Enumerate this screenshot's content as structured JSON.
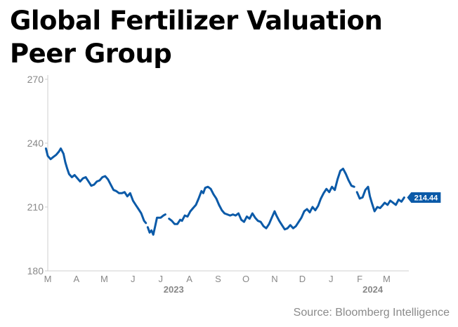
{
  "title_lines": [
    "Global Fertilizer Valuation",
    "Peer Group"
  ],
  "source": "Source: Bloomberg Intelligence",
  "colors": {
    "line": "#0b5aa8",
    "axis": "#cfcfcf",
    "tick_text": "#888888",
    "title": "#000000"
  },
  "chart_data": {
    "type": "line",
    "title": "Global Fertilizer Valuation Peer Group",
    "xlabel": "",
    "ylabel": "",
    "ylim": [
      180,
      270
    ],
    "yticks": [
      180,
      210,
      240,
      270
    ],
    "xlim": [
      "2023-03-01",
      "2024-03-25"
    ],
    "x_tick_labels": [
      {
        "label": "M",
        "date": "2023-03-01"
      },
      {
        "label": "A",
        "date": "2023-04-01"
      },
      {
        "label": "M",
        "date": "2023-05-01"
      },
      {
        "label": "J",
        "date": "2023-06-01"
      },
      {
        "label": "J",
        "date": "2023-07-01"
      },
      {
        "label": "A",
        "date": "2023-08-01"
      },
      {
        "label": "S",
        "date": "2023-09-01"
      },
      {
        "label": "O",
        "date": "2023-10-01"
      },
      {
        "label": "N",
        "date": "2023-11-01"
      },
      {
        "label": "D",
        "date": "2023-12-01"
      },
      {
        "label": "J",
        "date": "2024-01-01"
      },
      {
        "label": "F",
        "date": "2024-02-01"
      },
      {
        "label": "M",
        "date": "2024-03-01"
      }
    ],
    "year_labels": [
      {
        "label": "2023",
        "date": "2023-07-15"
      },
      {
        "label": "2024",
        "date": "2024-02-15"
      }
    ],
    "grid": false,
    "last_value_label": "214.44",
    "series": [
      {
        "points": [
          [
            "2023-02-27",
            237.5
          ],
          [
            "2023-03-01",
            234
          ],
          [
            "2023-03-04",
            232.5
          ],
          [
            "2023-03-07",
            233.5
          ],
          [
            "2023-03-10",
            234.5
          ],
          [
            "2023-03-13",
            236
          ],
          [
            "2023-03-15",
            237.5
          ],
          [
            "2023-03-18",
            235
          ],
          [
            "2023-03-20",
            231
          ],
          [
            "2023-03-22",
            228
          ],
          [
            "2023-03-24",
            225.5
          ],
          [
            "2023-03-27",
            224
          ],
          [
            "2023-03-30",
            225
          ],
          [
            "2023-04-02",
            223.5
          ],
          [
            "2023-04-05",
            222
          ],
          [
            "2023-04-08",
            223.5
          ],
          [
            "2023-04-11",
            224
          ],
          [
            "2023-04-14",
            222
          ],
          [
            "2023-04-17",
            220
          ],
          [
            "2023-04-20",
            220.5
          ],
          [
            "2023-04-23",
            222
          ],
          [
            "2023-04-26",
            222.5
          ],
          [
            "2023-04-29",
            224
          ],
          [
            "2023-05-02",
            224.5
          ],
          [
            "2023-05-05",
            223
          ],
          [
            "2023-05-08",
            220.5
          ],
          [
            "2023-05-11",
            218
          ],
          [
            "2023-05-14",
            217.5
          ],
          [
            "2023-05-17",
            216.5
          ],
          [
            "2023-05-20",
            216.5
          ],
          [
            "2023-05-23",
            217
          ],
          [
            "2023-05-26",
            215
          ],
          [
            "2023-05-29",
            216.5
          ],
          [
            "2023-06-01",
            213
          ],
          [
            "2023-06-04",
            211
          ],
          [
            "2023-06-07",
            209
          ],
          [
            "2023-06-10",
            207
          ],
          [
            "2023-06-13",
            203.5
          ],
          [
            "2023-06-15",
            202.5
          ],
          null,
          [
            "2023-06-17",
            200.5
          ],
          [
            "2023-06-19",
            198
          ],
          [
            "2023-06-21",
            199
          ],
          [
            "2023-06-23",
            197
          ],
          [
            "2023-06-25",
            201
          ],
          [
            "2023-06-27",
            205
          ],
          [
            "2023-07-01",
            205
          ],
          [
            "2023-07-04",
            206
          ],
          [
            "2023-07-06",
            206.5
          ],
          null,
          [
            "2023-07-10",
            204.5
          ],
          [
            "2023-07-13",
            203.5
          ],
          [
            "2023-07-16",
            202
          ],
          [
            "2023-07-19",
            202
          ],
          [
            "2023-07-22",
            204
          ],
          [
            "2023-07-24",
            203.5
          ],
          [
            "2023-07-27",
            206
          ],
          [
            "2023-07-30",
            205.5
          ],
          [
            "2023-08-02",
            208
          ],
          [
            "2023-08-05",
            209.5
          ],
          [
            "2023-08-08",
            211
          ],
          [
            "2023-08-11",
            214
          ],
          [
            "2023-08-14",
            217.5
          ],
          [
            "2023-08-16",
            216.5
          ],
          [
            "2023-08-18",
            219
          ],
          [
            "2023-08-21",
            219.5
          ],
          [
            "2023-08-24",
            218.5
          ],
          [
            "2023-08-27",
            216
          ],
          [
            "2023-08-30",
            214
          ],
          [
            "2023-09-02",
            211
          ],
          [
            "2023-09-05",
            208.5
          ],
          [
            "2023-09-08",
            207
          ],
          [
            "2023-09-11",
            206.5
          ],
          [
            "2023-09-14",
            206
          ],
          [
            "2023-09-17",
            206.5
          ],
          [
            "2023-09-20",
            206
          ],
          [
            "2023-09-23",
            207
          ],
          [
            "2023-09-26",
            204
          ],
          [
            "2023-09-29",
            203
          ],
          [
            "2023-10-02",
            205.5
          ],
          [
            "2023-10-05",
            204.5
          ],
          [
            "2023-10-08",
            207
          ],
          [
            "2023-10-11",
            205
          ],
          [
            "2023-10-14",
            203.5
          ],
          [
            "2023-10-17",
            203
          ],
          [
            "2023-10-20",
            201
          ],
          [
            "2023-10-23",
            200
          ],
          [
            "2023-10-26",
            202
          ],
          [
            "2023-10-29",
            205
          ],
          [
            "2023-11-01",
            208
          ],
          [
            "2023-11-03",
            206
          ],
          [
            "2023-11-06",
            203.5
          ],
          [
            "2023-11-09",
            201.5
          ],
          [
            "2023-11-12",
            199.5
          ],
          [
            "2023-11-15",
            200
          ],
          [
            "2023-11-18",
            201.5
          ],
          [
            "2023-11-21",
            200
          ],
          [
            "2023-11-24",
            201
          ],
          [
            "2023-11-27",
            203
          ],
          [
            "2023-11-30",
            205
          ],
          [
            "2023-12-03",
            208
          ],
          [
            "2023-12-06",
            209
          ],
          [
            "2023-12-09",
            207.5
          ],
          [
            "2023-12-12",
            210
          ],
          [
            "2023-12-15",
            208.5
          ],
          [
            "2023-12-18",
            210.5
          ],
          [
            "2023-12-21",
            214
          ],
          [
            "2023-12-24",
            216.5
          ],
          [
            "2023-12-27",
            218.5
          ],
          [
            "2023-12-30",
            217
          ],
          [
            "2024-01-02",
            219.5
          ],
          [
            "2024-01-05",
            218
          ],
          [
            "2024-01-08",
            223
          ],
          [
            "2024-01-11",
            227
          ],
          [
            "2024-01-14",
            228
          ],
          [
            "2024-01-17",
            225.5
          ],
          [
            "2024-01-20",
            222.5
          ],
          [
            "2024-01-23",
            220
          ],
          [
            "2024-01-26",
            219.5
          ],
          null,
          [
            "2024-01-29",
            217
          ],
          [
            "2024-02-01",
            214
          ],
          [
            "2024-02-04",
            214.5
          ],
          [
            "2024-02-07",
            218
          ],
          [
            "2024-02-10",
            219.5
          ],
          [
            "2024-02-12",
            215
          ],
          [
            "2024-02-14",
            212
          ],
          [
            "2024-02-17",
            208
          ],
          [
            "2024-02-20",
            210
          ],
          [
            "2024-02-23",
            209.5
          ],
          [
            "2024-02-26",
            211
          ],
          [
            "2024-02-28",
            212
          ],
          [
            "2024-03-02",
            211
          ],
          [
            "2024-03-05",
            213
          ],
          [
            "2024-03-08",
            212
          ],
          [
            "2024-03-11",
            211
          ],
          [
            "2024-03-14",
            213.5
          ],
          [
            "2024-03-17",
            212.5
          ],
          [
            "2024-03-20",
            214.44
          ]
        ]
      }
    ]
  }
}
